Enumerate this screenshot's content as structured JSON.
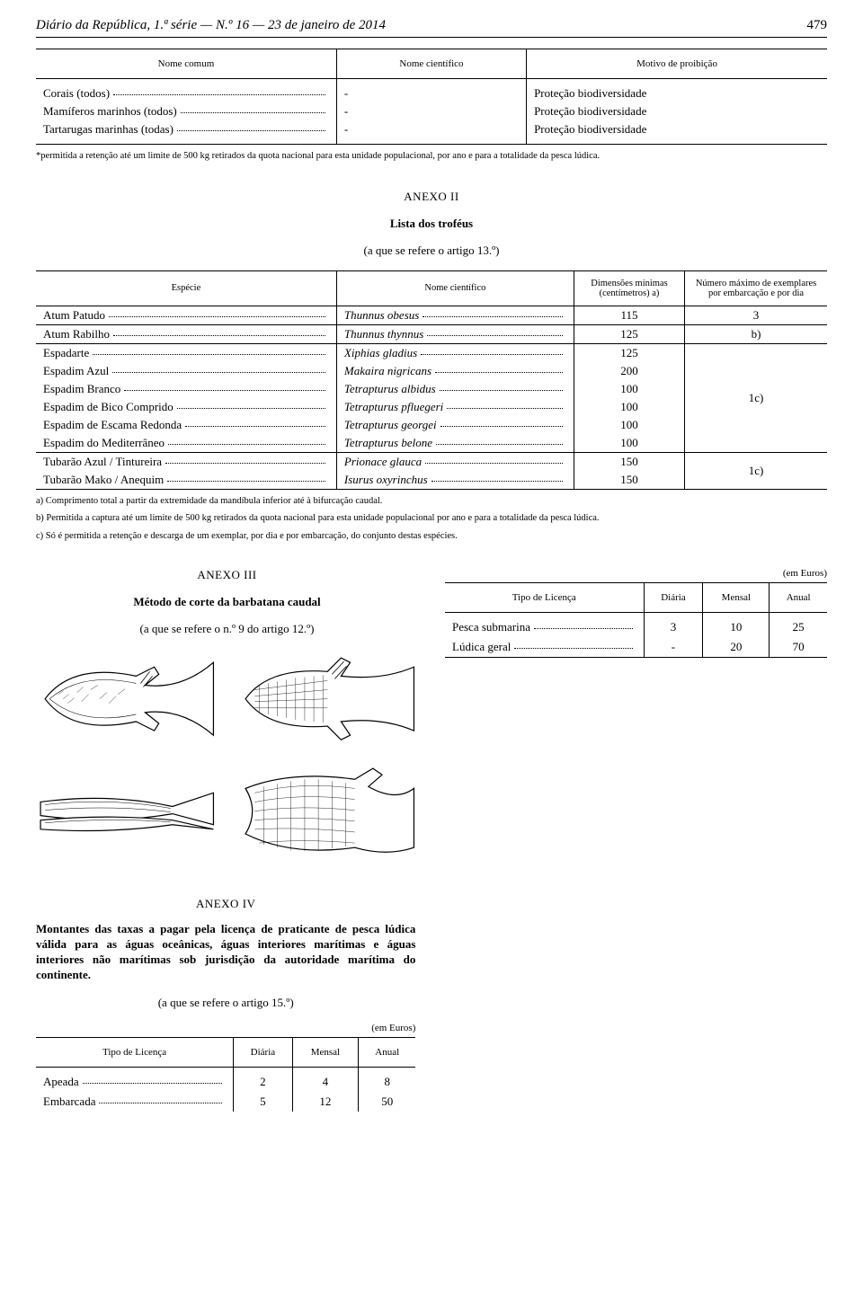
{
  "header": {
    "journal": "Diário da República, 1.ª série — N.º 16 — 23 de janeiro de 2014",
    "page": "479"
  },
  "table1": {
    "headers": [
      "Nome comum",
      "Nome científico",
      "Motivo de proibição"
    ],
    "rows": [
      {
        "name": "Corais (todos)",
        "sci": "-",
        "reason": "Proteção biodiversidade"
      },
      {
        "name": "Mamíferos marinhos (todos)",
        "sci": "-",
        "reason": "Proteção biodiversidade"
      },
      {
        "name": "Tartarugas marinhas (todas)",
        "sci": "-",
        "reason": "Proteção biodiversidade"
      }
    ],
    "footnote": "*permitida a retenção até um limite de 500 kg retirados da quota nacional para esta unidade populacional, por ano e para a totalidade da pesca lúdica."
  },
  "anexo2": {
    "title": "ANEXO II",
    "subtitle": "Lista dos troféus",
    "ref": "(a que se refere o artigo 13.º)",
    "headers": [
      "Espécie",
      "Nome científico",
      "Dimensões mínimas (centímetros) a)",
      "Número máximo de exemplares por embarcação e por dia"
    ],
    "groups": [
      {
        "rows": [
          {
            "sp": "Atum Patudo",
            "sci": "Thunnus obesus",
            "dim": "115",
            "max": "3"
          }
        ]
      },
      {
        "rows": [
          {
            "sp": "Atum Rabilho",
            "sci": "Thunnus thynnus",
            "dim": "125",
            "max": "b)"
          }
        ]
      },
      {
        "rows": [
          {
            "sp": "Espadarte",
            "sci": "Xiphias gladius",
            "dim": "125"
          },
          {
            "sp": "Espadim Azul",
            "sci": "Makaira nigricans",
            "dim": "200"
          },
          {
            "sp": "Espadim Branco",
            "sci": "Tetrapturus albidus",
            "dim": "100"
          },
          {
            "sp": "Espadim de Bico Comprido",
            "sci": "Tetrapturus pfluegeri",
            "dim": "100"
          },
          {
            "sp": "Espadim de Escama Redonda",
            "sci": "Tetrapturus georgei",
            "dim": "100"
          },
          {
            "sp": "Espadim do Mediterrâneo",
            "sci": "Tetrapturus belone",
            "dim": "100"
          }
        ],
        "max": "1c)"
      },
      {
        "rows": [
          {
            "sp": "Tubarão Azul / Tintureira",
            "sci": "Prionace glauca",
            "dim": "150"
          },
          {
            "sp": "Tubarão Mako / Anequim",
            "sci": "Isurus oxyrinchus",
            "dim": "150"
          }
        ],
        "max": "1c)"
      }
    ],
    "footnotes": [
      "a) Comprimento total a partir da extremidade da mandíbula inferior até à bifurcação caudal.",
      "b) Permitida a captura até um limite de 500 kg retirados da quota nacional para esta unidade populacional por ano e para a totalidade da pesca lúdica.",
      "c) Só é permitida a retenção e descarga de um exemplar, por dia e por embarcação, do conjunto destas espécies."
    ]
  },
  "anexo3": {
    "title": "ANEXO III",
    "subtitle": "Método de corte da barbatana caudal",
    "ref": "(a que se refere o n.º 9 do artigo 12.º)"
  },
  "license_table": {
    "euros": "(em Euros)",
    "headers": [
      "Tipo de Licença",
      "Diária",
      "Mensal",
      "Anual"
    ],
    "rows": [
      {
        "type": "Pesca submarina",
        "d": "3",
        "m": "10",
        "a": "25"
      },
      {
        "type": "Lúdica geral",
        "d": "-",
        "m": "20",
        "a": "70"
      }
    ]
  },
  "anexo4": {
    "title": "ANEXO IV",
    "subtitle": "Montantes das taxas a pagar pela licença de praticante de pesca lúdica válida para as águas oceânicas, águas interiores marítimas e águas interiores não marítimas sob jurisdição da autoridade marítima do continente.",
    "ref": "(a que se refere o artigo 15.º)",
    "euros": "(em Euros)",
    "headers": [
      "Tipo de Licença",
      "Diária",
      "Mensal",
      "Anual"
    ],
    "rows": [
      {
        "type": "Apeada",
        "d": "2",
        "m": "4",
        "a": "8"
      },
      {
        "type": "Embarcada",
        "d": "5",
        "m": "12",
        "a": "50"
      }
    ]
  }
}
